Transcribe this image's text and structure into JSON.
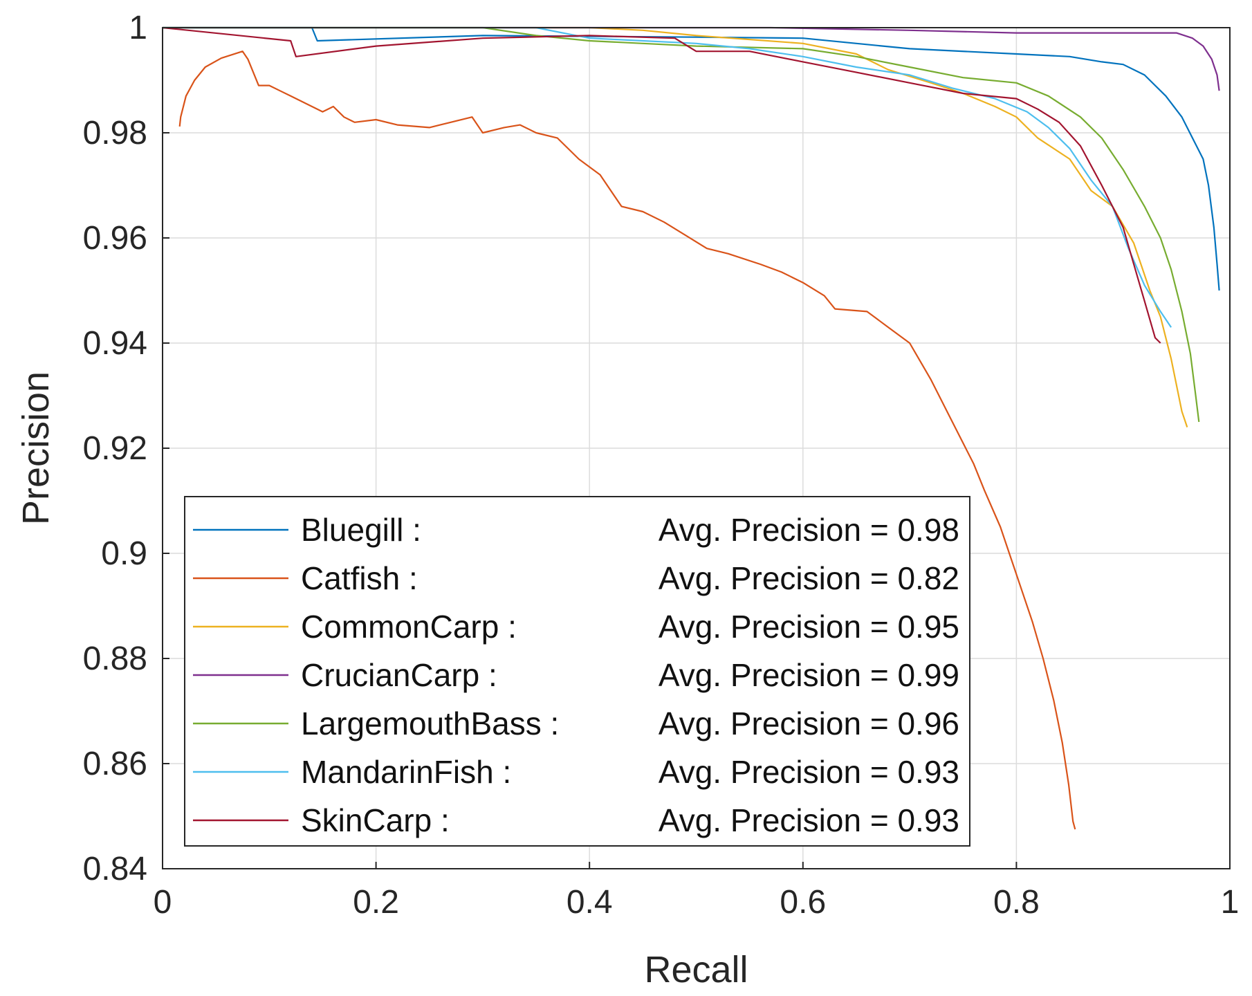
{
  "chart_data": {
    "type": "line",
    "title": "",
    "xlabel": "Recall",
    "ylabel": "Precision",
    "xlim": [
      0,
      1
    ],
    "ylim": [
      0.84,
      1
    ],
    "grid": true,
    "legend_position": "bottom-left",
    "x_ticks": [
      {
        "value": 0,
        "label": "0"
      },
      {
        "value": 0.2,
        "label": "0.2"
      },
      {
        "value": 0.4,
        "label": "0.4"
      },
      {
        "value": 0.6,
        "label": "0.6"
      },
      {
        "value": 0.8,
        "label": "0.8"
      },
      {
        "value": 1,
        "label": "1"
      }
    ],
    "y_ticks": [
      {
        "value": 0.84,
        "label": "0.84"
      },
      {
        "value": 0.86,
        "label": "0.86"
      },
      {
        "value": 0.88,
        "label": "0.88"
      },
      {
        "value": 0.9,
        "label": "0.9"
      },
      {
        "value": 0.92,
        "label": "0.92"
      },
      {
        "value": 0.94,
        "label": "0.94"
      },
      {
        "value": 0.96,
        "label": "0.96"
      },
      {
        "value": 0.98,
        "label": "0.98"
      },
      {
        "value": 1,
        "label": "1"
      }
    ],
    "series": [
      {
        "name": "Bluegill :",
        "ap_label": "Avg. Precision = 0.98",
        "color": "#0072BD",
        "points": [
          [
            0,
            1
          ],
          [
            0.14,
            1
          ],
          [
            0.145,
            0.9975
          ],
          [
            0.3,
            0.9985
          ],
          [
            0.5,
            0.9982
          ],
          [
            0.6,
            0.998
          ],
          [
            0.7,
            0.996
          ],
          [
            0.8,
            0.995
          ],
          [
            0.85,
            0.9945
          ],
          [
            0.88,
            0.9935
          ],
          [
            0.9,
            0.993
          ],
          [
            0.92,
            0.991
          ],
          [
            0.94,
            0.987
          ],
          [
            0.955,
            0.983
          ],
          [
            0.965,
            0.979
          ],
          [
            0.975,
            0.975
          ],
          [
            0.98,
            0.97
          ],
          [
            0.985,
            0.962
          ],
          [
            0.988,
            0.955
          ],
          [
            0.99,
            0.95
          ]
        ]
      },
      {
        "name": "Catfish :",
        "ap_label": "Avg. Precision = 0.82",
        "color": "#D95319",
        "points": [
          [
            0.016,
            0.9812
          ],
          [
            0.017,
            0.983
          ],
          [
            0.022,
            0.987
          ],
          [
            0.03,
            0.99
          ],
          [
            0.04,
            0.9925
          ],
          [
            0.055,
            0.9942
          ],
          [
            0.075,
            0.9955
          ],
          [
            0.08,
            0.994
          ],
          [
            0.09,
            0.989
          ],
          [
            0.1,
            0.989
          ],
          [
            0.11,
            0.988
          ],
          [
            0.12,
            0.987
          ],
          [
            0.13,
            0.986
          ],
          [
            0.14,
            0.985
          ],
          [
            0.15,
            0.984
          ],
          [
            0.16,
            0.985
          ],
          [
            0.17,
            0.983
          ],
          [
            0.18,
            0.982
          ],
          [
            0.2,
            0.9825
          ],
          [
            0.22,
            0.9815
          ],
          [
            0.25,
            0.981
          ],
          [
            0.27,
            0.982
          ],
          [
            0.29,
            0.983
          ],
          [
            0.3,
            0.98
          ],
          [
            0.32,
            0.981
          ],
          [
            0.335,
            0.9815
          ],
          [
            0.35,
            0.98
          ],
          [
            0.37,
            0.979
          ],
          [
            0.39,
            0.975
          ],
          [
            0.41,
            0.972
          ],
          [
            0.43,
            0.966
          ],
          [
            0.45,
            0.965
          ],
          [
            0.47,
            0.963
          ],
          [
            0.49,
            0.9605
          ],
          [
            0.51,
            0.958
          ],
          [
            0.53,
            0.957
          ],
          [
            0.56,
            0.955
          ],
          [
            0.58,
            0.9535
          ],
          [
            0.6,
            0.9515
          ],
          [
            0.62,
            0.949
          ],
          [
            0.63,
            0.9465
          ],
          [
            0.66,
            0.946
          ],
          [
            0.68,
            0.943
          ],
          [
            0.7,
            0.94
          ],
          [
            0.72,
            0.933
          ],
          [
            0.74,
            0.925
          ],
          [
            0.76,
            0.917
          ],
          [
            0.77,
            0.912
          ],
          [
            0.785,
            0.905
          ],
          [
            0.795,
            0.899
          ],
          [
            0.805,
            0.893
          ],
          [
            0.815,
            0.887
          ],
          [
            0.825,
            0.88
          ],
          [
            0.835,
            0.872
          ],
          [
            0.843,
            0.864
          ],
          [
            0.849,
            0.856
          ],
          [
            0.853,
            0.849
          ],
          [
            0.855,
            0.8475
          ]
        ]
      },
      {
        "name": "CommonCarp :",
        "ap_label": "Avg. Precision = 0.95",
        "color": "#EDB120",
        "points": [
          [
            0,
            1
          ],
          [
            0.4,
            1
          ],
          [
            0.45,
            0.9995
          ],
          [
            0.5,
            0.9985
          ],
          [
            0.6,
            0.997
          ],
          [
            0.65,
            0.995
          ],
          [
            0.68,
            0.992
          ],
          [
            0.72,
            0.9895
          ],
          [
            0.75,
            0.9875
          ],
          [
            0.78,
            0.985
          ],
          [
            0.8,
            0.983
          ],
          [
            0.82,
            0.979
          ],
          [
            0.85,
            0.975
          ],
          [
            0.87,
            0.969
          ],
          [
            0.89,
            0.966
          ],
          [
            0.91,
            0.959
          ],
          [
            0.925,
            0.95
          ],
          [
            0.935,
            0.945
          ],
          [
            0.945,
            0.937
          ],
          [
            0.955,
            0.927
          ],
          [
            0.96,
            0.924
          ]
        ]
      },
      {
        "name": "CrucianCarp :",
        "ap_label": "Avg. Precision = 0.99",
        "color": "#7E2F8E",
        "points": [
          [
            0,
            1
          ],
          [
            0.57,
            1
          ],
          [
            0.7,
            0.9995
          ],
          [
            0.8,
            0.999
          ],
          [
            0.9,
            0.999
          ],
          [
            0.95,
            0.999
          ],
          [
            0.965,
            0.998
          ],
          [
            0.975,
            0.9965
          ],
          [
            0.983,
            0.994
          ],
          [
            0.988,
            0.991
          ],
          [
            0.99,
            0.988
          ]
        ]
      },
      {
        "name": "LargemouthBass :",
        "ap_label": "Avg. Precision = 0.96",
        "color": "#77AC30",
        "points": [
          [
            0,
            1
          ],
          [
            0.3,
            1
          ],
          [
            0.35,
            0.9985
          ],
          [
            0.4,
            0.9975
          ],
          [
            0.45,
            0.997
          ],
          [
            0.5,
            0.9965
          ],
          [
            0.6,
            0.996
          ],
          [
            0.65,
            0.9945
          ],
          [
            0.7,
            0.9925
          ],
          [
            0.75,
            0.9905
          ],
          [
            0.8,
            0.9895
          ],
          [
            0.83,
            0.987
          ],
          [
            0.86,
            0.983
          ],
          [
            0.88,
            0.979
          ],
          [
            0.9,
            0.973
          ],
          [
            0.92,
            0.966
          ],
          [
            0.935,
            0.96
          ],
          [
            0.945,
            0.954
          ],
          [
            0.955,
            0.946
          ],
          [
            0.963,
            0.938
          ],
          [
            0.968,
            0.93
          ],
          [
            0.971,
            0.925
          ]
        ]
      },
      {
        "name": "MandarinFish :",
        "ap_label": "Avg. Precision = 0.93",
        "color": "#4DBEEE",
        "points": [
          [
            0,
            1
          ],
          [
            0.35,
            1
          ],
          [
            0.4,
            0.998
          ],
          [
            0.5,
            0.997
          ],
          [
            0.55,
            0.996
          ],
          [
            0.6,
            0.9945
          ],
          [
            0.65,
            0.9925
          ],
          [
            0.7,
            0.991
          ],
          [
            0.74,
            0.9885
          ],
          [
            0.78,
            0.9865
          ],
          [
            0.81,
            0.984
          ],
          [
            0.83,
            0.981
          ],
          [
            0.85,
            0.977
          ],
          [
            0.87,
            0.971
          ],
          [
            0.89,
            0.966
          ],
          [
            0.905,
            0.958
          ],
          [
            0.92,
            0.951
          ],
          [
            0.935,
            0.946
          ],
          [
            0.945,
            0.943
          ]
        ]
      },
      {
        "name": "SkinCarp :",
        "ap_label": "Avg. Precision = 0.93",
        "color": "#A2142F",
        "points": [
          [
            0,
            1
          ],
          [
            0.12,
            0.9975
          ],
          [
            0.125,
            0.9945
          ],
          [
            0.2,
            0.9965
          ],
          [
            0.3,
            0.998
          ],
          [
            0.4,
            0.9985
          ],
          [
            0.48,
            0.998
          ],
          [
            0.5,
            0.9955
          ],
          [
            0.55,
            0.9955
          ],
          [
            0.6,
            0.9935
          ],
          [
            0.65,
            0.9915
          ],
          [
            0.7,
            0.9895
          ],
          [
            0.75,
            0.9875
          ],
          [
            0.8,
            0.9865
          ],
          [
            0.82,
            0.9845
          ],
          [
            0.84,
            0.982
          ],
          [
            0.86,
            0.9775
          ],
          [
            0.88,
            0.97
          ],
          [
            0.9,
            0.962
          ],
          [
            0.91,
            0.955
          ],
          [
            0.92,
            0.948
          ],
          [
            0.93,
            0.941
          ],
          [
            0.935,
            0.94
          ]
        ]
      }
    ]
  }
}
